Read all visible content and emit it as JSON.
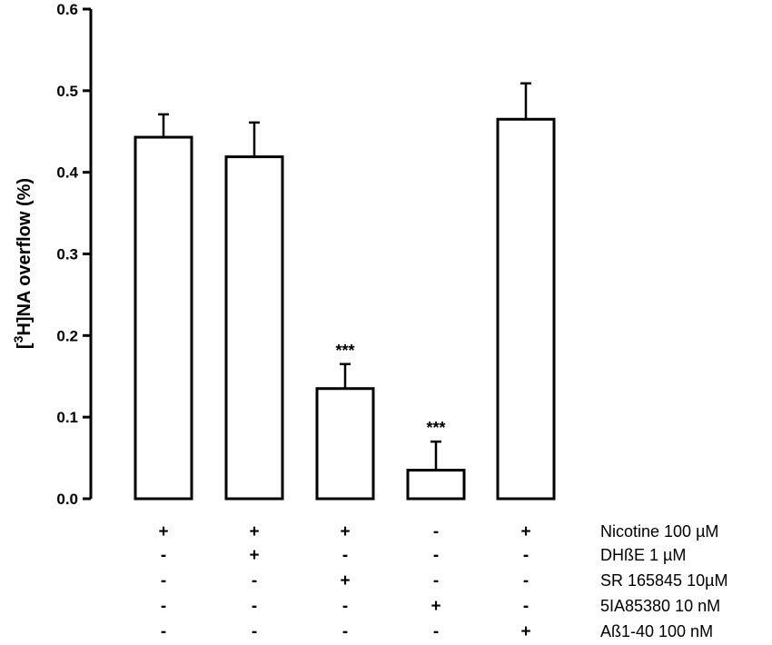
{
  "chart_data": {
    "type": "bar",
    "title": "",
    "xlabel": "",
    "ylabel": {
      "prefix": "[",
      "superscript": "3",
      "suffix": "H]NA overflow (%)"
    },
    "ylim": [
      0,
      0.6
    ],
    "yticks": [
      "0.0",
      "0.1",
      "0.2",
      "0.3",
      "0.4",
      "0.5",
      "0.6"
    ],
    "grid": false,
    "values": [
      0.443,
      0.419,
      0.135,
      0.035,
      0.465
    ],
    "errors": [
      0.028,
      0.042,
      0.03,
      0.035,
      0.044
    ],
    "significance": [
      "",
      "",
      "***",
      "***",
      ""
    ],
    "bar_fill": "#ffffff",
    "bar_stroke": "#000000",
    "treatments": [
      {
        "label": "Nicotine 100  µM",
        "signs": [
          "+",
          "+",
          "+",
          "-",
          "+"
        ]
      },
      {
        "label": "DHßE  1 µM",
        "signs": [
          "-",
          "+",
          "-",
          "-",
          "-"
        ]
      },
      {
        "label": "SR 165845 10µM",
        "signs": [
          "-",
          "-",
          "+",
          "-",
          "-"
        ]
      },
      {
        "label": "5IA85380 10 nM",
        "signs": [
          "-",
          "-",
          "-",
          "+",
          "-"
        ]
      },
      {
        "label": "Aß1-40 100 nM",
        "signs": [
          "-",
          "-",
          "-",
          "-",
          "+"
        ]
      }
    ]
  }
}
